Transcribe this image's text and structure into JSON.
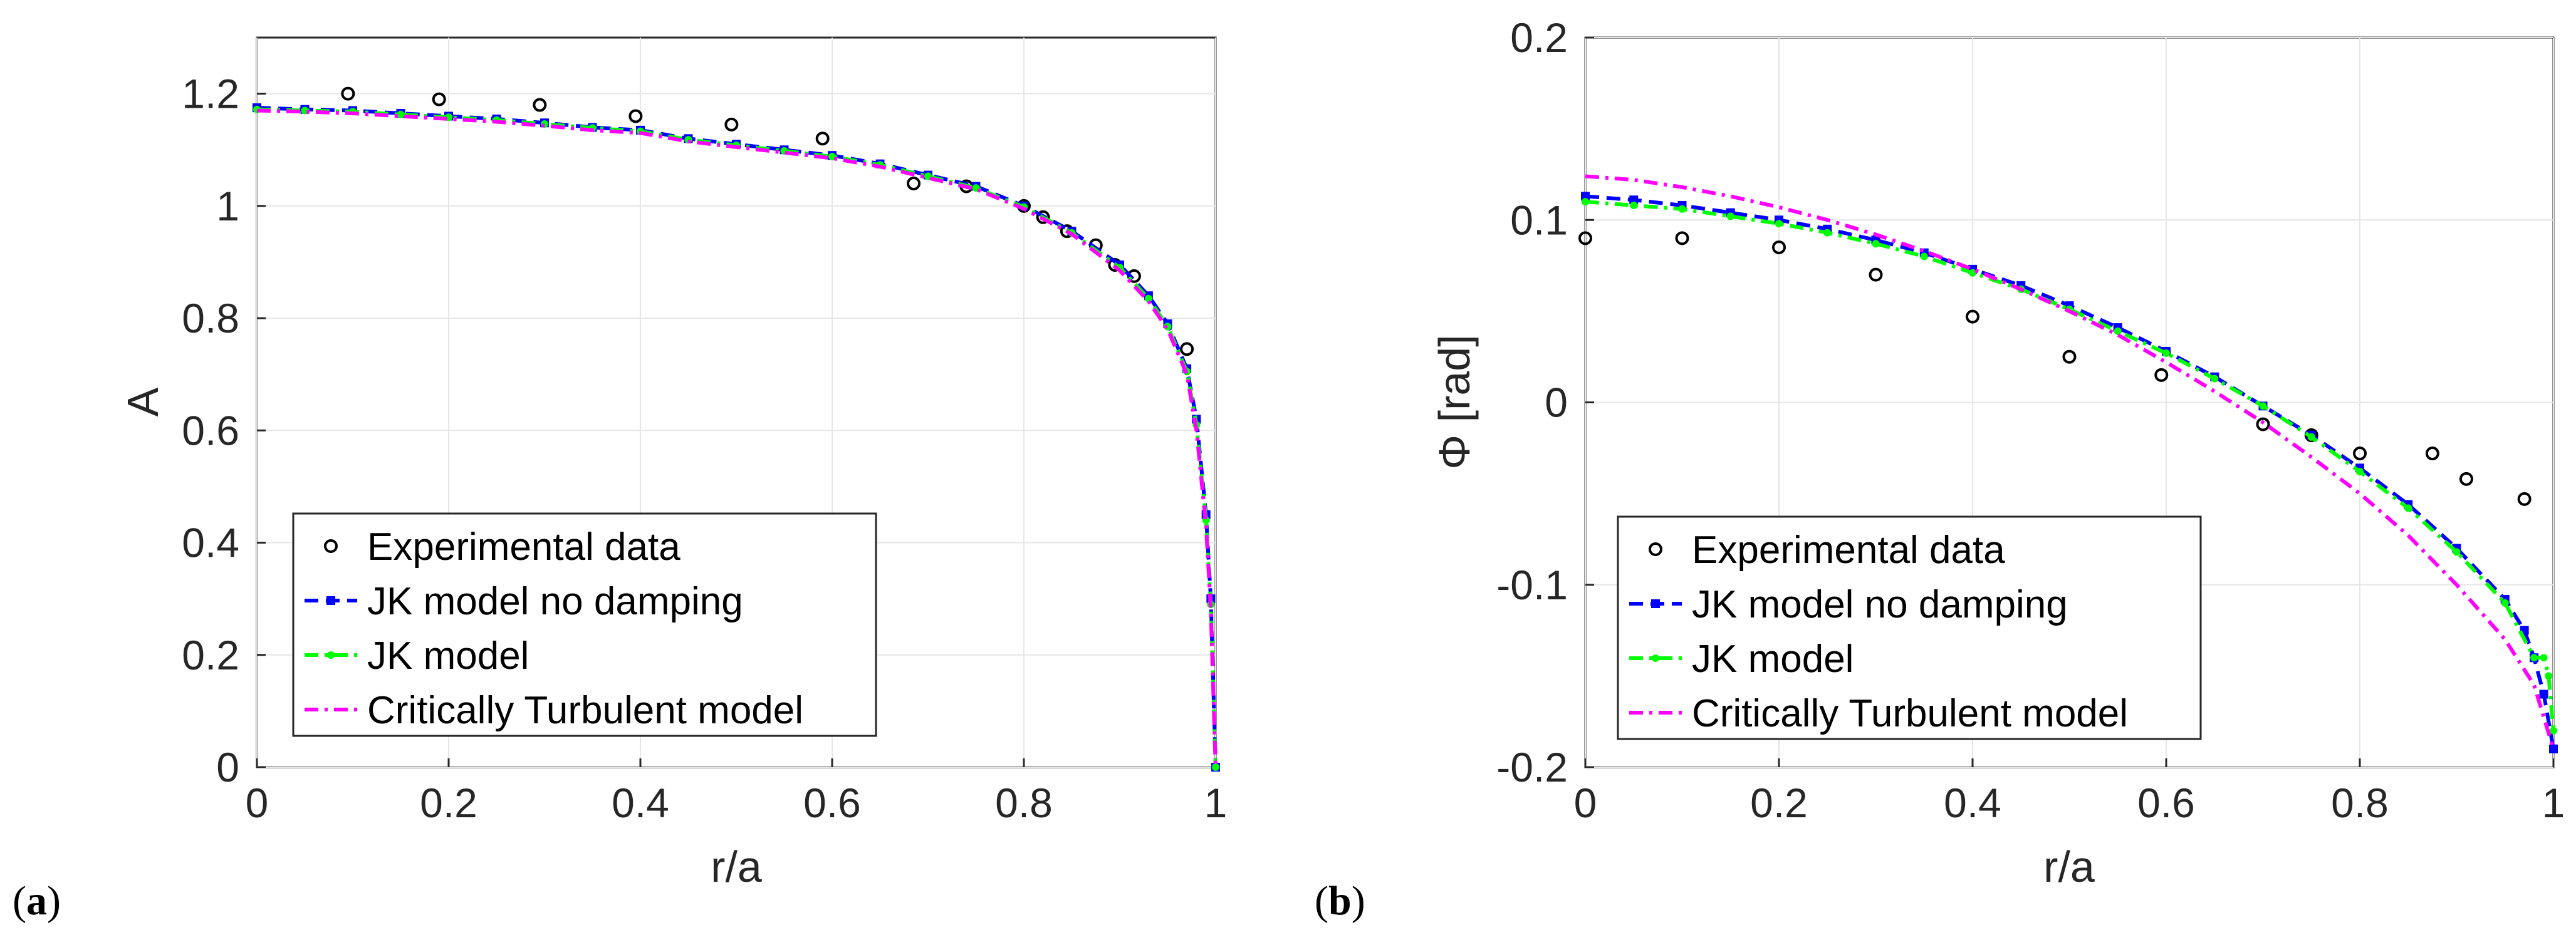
{
  "chart_data": [
    {
      "type": "line",
      "panel": "(a)",
      "panel_letter": "a",
      "xlabel": "r/a",
      "ylabel": "A",
      "xlim": [
        0,
        1
      ],
      "ylim": [
        0,
        1.3
      ],
      "xticks": [
        0,
        0.2,
        0.4,
        0.6,
        0.8,
        1
      ],
      "yticks": [
        0,
        0.2,
        0.4,
        0.6,
        0.8,
        1,
        1.2
      ],
      "xtick_labels": [
        "0",
        "0.2",
        "0.4",
        "0.6",
        "0.8",
        "1"
      ],
      "ytick_labels": [
        "0",
        "0.2",
        "0.4",
        "0.6",
        "0.8",
        "1",
        "1.2"
      ],
      "grid": true,
      "legend_position": "bottom-left",
      "series": [
        {
          "name": "Experimental data",
          "style": "markers",
          "color": "#000000",
          "x": [
            0.095,
            0.19,
            0.295,
            0.395,
            0.495,
            0.59,
            0.685,
            0.74,
            0.8,
            0.82,
            0.845,
            0.875,
            0.895,
            0.915,
            0.97
          ],
          "y": [
            1.2,
            1.19,
            1.18,
            1.16,
            1.145,
            1.12,
            1.04,
            1.035,
            1.0,
            0.98,
            0.955,
            0.93,
            0.895,
            0.875,
            0.745
          ]
        },
        {
          "name": "JK model no damping",
          "style": "dash-square",
          "color": "#0000ff",
          "x": [
            0,
            0.05,
            0.1,
            0.15,
            0.2,
            0.25,
            0.3,
            0.35,
            0.4,
            0.45,
            0.5,
            0.55,
            0.6,
            0.65,
            0.7,
            0.75,
            0.8,
            0.85,
            0.9,
            0.93,
            0.95,
            0.97,
            0.98,
            0.99,
            0.995,
            1.0
          ],
          "y": [
            1.175,
            1.172,
            1.17,
            1.165,
            1.16,
            1.155,
            1.148,
            1.14,
            1.135,
            1.12,
            1.11,
            1.1,
            1.09,
            1.075,
            1.055,
            1.035,
            1.0,
            0.955,
            0.895,
            0.84,
            0.79,
            0.71,
            0.62,
            0.45,
            0.3,
            0.0
          ]
        },
        {
          "name": "JK model",
          "style": "dashdot-dot",
          "color": "#00ff00",
          "x": [
            0,
            0.05,
            0.1,
            0.15,
            0.2,
            0.25,
            0.3,
            0.35,
            0.4,
            0.45,
            0.5,
            0.55,
            0.6,
            0.65,
            0.7,
            0.75,
            0.8,
            0.85,
            0.9,
            0.93,
            0.95,
            0.97,
            0.98,
            0.99,
            0.995,
            1.0
          ],
          "y": [
            1.172,
            1.17,
            1.168,
            1.163,
            1.158,
            1.153,
            1.146,
            1.139,
            1.133,
            1.118,
            1.108,
            1.098,
            1.088,
            1.073,
            1.053,
            1.032,
            0.998,
            0.952,
            0.89,
            0.835,
            0.785,
            0.705,
            0.61,
            0.44,
            0.29,
            0.0
          ]
        },
        {
          "name": "Critically Turbulent model",
          "style": "dashdot",
          "color": "#ff00ff",
          "x": [
            0,
            0.05,
            0.1,
            0.15,
            0.2,
            0.25,
            0.3,
            0.35,
            0.4,
            0.45,
            0.5,
            0.55,
            0.6,
            0.65,
            0.7,
            0.75,
            0.8,
            0.85,
            0.9,
            0.93,
            0.95,
            0.97,
            0.98,
            0.99,
            0.995,
            1.0
          ],
          "y": [
            1.17,
            1.168,
            1.165,
            1.16,
            1.155,
            1.15,
            1.143,
            1.135,
            1.13,
            1.115,
            1.105,
            1.095,
            1.085,
            1.07,
            1.05,
            1.03,
            0.995,
            0.95,
            0.885,
            0.83,
            0.78,
            0.7,
            0.6,
            0.43,
            0.28,
            0.0
          ]
        }
      ]
    },
    {
      "type": "line",
      "panel": "(b)",
      "panel_letter": "b",
      "xlabel": "r/a",
      "ylabel": "Φ [rad]",
      "xlim": [
        0,
        1
      ],
      "ylim": [
        -0.2,
        0.2
      ],
      "xticks": [
        0,
        0.2,
        0.4,
        0.6,
        0.8,
        1
      ],
      "yticks": [
        -0.2,
        -0.1,
        0,
        0.1,
        0.2
      ],
      "xtick_labels": [
        "0",
        "0.2",
        "0.4",
        "0.6",
        "0.8",
        "1"
      ],
      "ytick_labels": [
        "-0.2",
        "-0.1",
        "0",
        "0.1",
        "0.2"
      ],
      "grid": true,
      "legend_position": "bottom-left",
      "series": [
        {
          "name": "Experimental data",
          "style": "markers",
          "color": "#000000",
          "x": [
            0.0,
            0.1,
            0.2,
            0.3,
            0.4,
            0.5,
            0.595,
            0.7,
            0.75,
            0.8,
            0.875,
            0.91,
            0.97
          ],
          "y": [
            0.09,
            0.09,
            0.085,
            0.07,
            0.047,
            0.025,
            0.015,
            -0.012,
            -0.018,
            -0.028,
            -0.028,
            -0.042,
            -0.053
          ]
        },
        {
          "name": "JK model no damping",
          "style": "dash-square",
          "color": "#0000ff",
          "x": [
            0,
            0.05,
            0.1,
            0.15,
            0.2,
            0.25,
            0.3,
            0.35,
            0.4,
            0.45,
            0.5,
            0.55,
            0.6,
            0.65,
            0.7,
            0.75,
            0.8,
            0.85,
            0.9,
            0.95,
            0.97,
            0.98,
            0.99,
            1.0
          ],
          "y": [
            0.113,
            0.111,
            0.108,
            0.104,
            0.1,
            0.095,
            0.089,
            0.082,
            0.073,
            0.064,
            0.053,
            0.041,
            0.028,
            0.014,
            -0.002,
            -0.018,
            -0.036,
            -0.056,
            -0.08,
            -0.108,
            -0.125,
            -0.14,
            -0.16,
            -0.19
          ]
        },
        {
          "name": "JK model",
          "style": "dashdot-dot",
          "color": "#00ff00",
          "x": [
            0,
            0.05,
            0.1,
            0.15,
            0.2,
            0.25,
            0.3,
            0.35,
            0.4,
            0.45,
            0.5,
            0.55,
            0.6,
            0.65,
            0.7,
            0.75,
            0.8,
            0.85,
            0.9,
            0.95,
            0.98,
            0.99,
            0.995,
            1.0
          ],
          "y": [
            0.11,
            0.108,
            0.106,
            0.102,
            0.098,
            0.093,
            0.087,
            0.08,
            0.071,
            0.062,
            0.051,
            0.039,
            0.027,
            0.013,
            -0.002,
            -0.019,
            -0.038,
            -0.058,
            -0.082,
            -0.11,
            -0.14,
            -0.14,
            -0.15,
            -0.18
          ]
        },
        {
          "name": "Critically Turbulent model",
          "style": "dashdot",
          "color": "#ff00ff",
          "x": [
            0,
            0.05,
            0.1,
            0.15,
            0.2,
            0.25,
            0.3,
            0.35,
            0.4,
            0.45,
            0.5,
            0.55,
            0.6,
            0.65,
            0.7,
            0.75,
            0.8,
            0.85,
            0.9,
            0.95,
            0.98,
            1.0
          ],
          "y": [
            0.124,
            0.122,
            0.118,
            0.113,
            0.107,
            0.1,
            0.092,
            0.083,
            0.073,
            0.062,
            0.05,
            0.037,
            0.022,
            0.006,
            -0.011,
            -0.03,
            -0.05,
            -0.073,
            -0.1,
            -0.13,
            -0.155,
            -0.19
          ]
        }
      ]
    }
  ]
}
